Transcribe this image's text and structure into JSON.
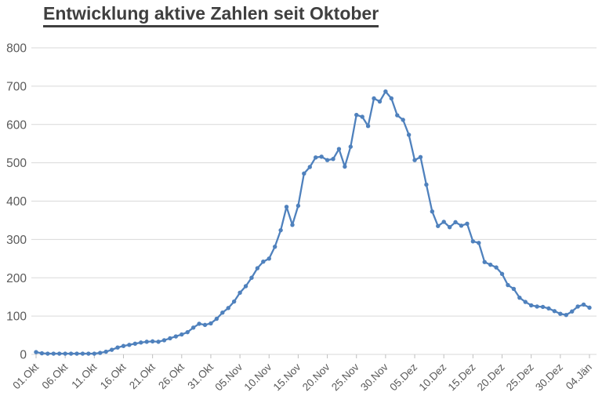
{
  "title": "Entwicklung aktive Zahlen seit Oktober",
  "colors": {
    "line": "#4F81BD",
    "marker": "#4F81BD",
    "gridline": "#D9D9D9",
    "axis_line": "#BFBFBF",
    "axis_text": "#595959",
    "title_text": "#3F3F3F",
    "background": "#FFFFFF"
  },
  "chart_data": {
    "type": "line",
    "title": "Entwicklung aktive Zahlen seit Oktober",
    "xlabel": "",
    "ylabel": "",
    "ylim": [
      0,
      800
    ],
    "y_ticks": [
      0,
      100,
      200,
      300,
      400,
      500,
      600,
      700,
      800
    ],
    "grid": "horizontal",
    "legend": "none",
    "marker": "circle",
    "x_label_every": 5,
    "x_tick_labels_shown": [
      "01.Okt",
      "06.Okt",
      "11.Okt",
      "16.Okt",
      "21.Okt",
      "26.Okt",
      "31.Okt",
      "05.Nov",
      "10.Nov",
      "15.Nov",
      "20.Nov",
      "25.Nov",
      "30.Nov",
      "05.Dez",
      "10.Dez",
      "15.Dez",
      "20.Dez",
      "25.Dez",
      "30.Dez",
      "04.Jän"
    ],
    "categories": [
      "01.Okt",
      "02.Okt",
      "03.Okt",
      "04.Okt",
      "05.Okt",
      "06.Okt",
      "07.Okt",
      "08.Okt",
      "09.Okt",
      "10.Okt",
      "11.Okt",
      "12.Okt",
      "13.Okt",
      "14.Okt",
      "15.Okt",
      "16.Okt",
      "17.Okt",
      "18.Okt",
      "19.Okt",
      "20.Okt",
      "21.Okt",
      "22.Okt",
      "23.Okt",
      "24.Okt",
      "25.Okt",
      "26.Okt",
      "27.Okt",
      "28.Okt",
      "29.Okt",
      "30.Okt",
      "31.Okt",
      "01.Nov",
      "02.Nov",
      "03.Nov",
      "04.Nov",
      "05.Nov",
      "06.Nov",
      "07.Nov",
      "08.Nov",
      "09.Nov",
      "10.Nov",
      "11.Nov",
      "12.Nov",
      "13.Nov",
      "14.Nov",
      "15.Nov",
      "16.Nov",
      "17.Nov",
      "18.Nov",
      "19.Nov",
      "20.Nov",
      "21.Nov",
      "22.Nov",
      "23.Nov",
      "24.Nov",
      "25.Nov",
      "26.Nov",
      "27.Nov",
      "28.Nov",
      "29.Nov",
      "30.Nov",
      "01.Dez",
      "02.Dez",
      "03.Dez",
      "04.Dez",
      "05.Dez",
      "06.Dez",
      "07.Dez",
      "08.Dez",
      "09.Dez",
      "10.Dez",
      "11.Dez",
      "12.Dez",
      "13.Dez",
      "14.Dez",
      "15.Dez",
      "16.Dez",
      "17.Dez",
      "18.Dez",
      "19.Dez",
      "20.Dez",
      "21.Dez",
      "22.Dez",
      "23.Dez",
      "24.Dez",
      "25.Dez",
      "26.Dez",
      "27.Dez",
      "28.Dez",
      "29.Dez",
      "30.Dez",
      "31.Dez",
      "01.Jän",
      "02.Jän",
      "03.Jän",
      "04.Jän"
    ],
    "values": [
      6,
      3,
      2,
      2,
      2,
      2,
      2,
      2,
      2,
      2,
      2,
      4,
      7,
      12,
      18,
      22,
      25,
      28,
      31,
      33,
      34,
      33,
      37,
      42,
      47,
      52,
      58,
      70,
      80,
      77,
      81,
      93,
      109,
      121,
      138,
      161,
      178,
      200,
      225,
      242,
      250,
      281,
      324,
      385,
      338,
      388,
      472,
      489,
      514,
      516,
      507,
      510,
      536,
      490,
      542,
      625,
      620,
      596,
      668,
      660,
      686,
      668,
      624,
      612,
      573,
      507,
      515,
      443,
      373,
      335,
      346,
      332,
      345,
      336,
      341,
      295,
      291,
      241,
      234,
      227,
      210,
      181,
      171,
      148,
      137,
      128,
      125,
      124,
      120,
      113,
      106,
      103,
      112,
      125,
      130,
      122
    ]
  }
}
